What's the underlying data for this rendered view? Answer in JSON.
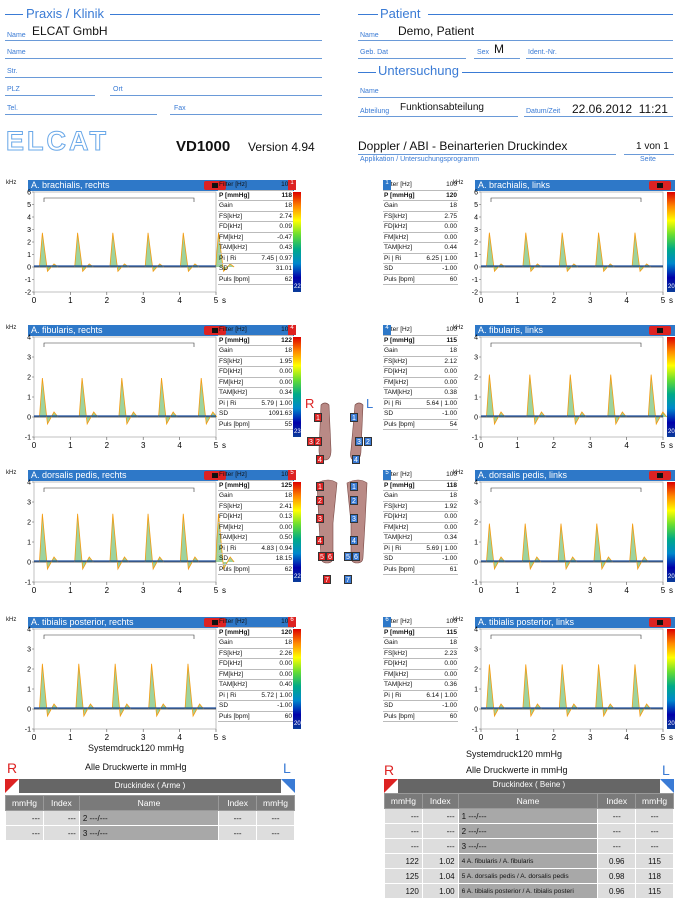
{
  "header": {
    "praxis_title": "Praxis / Klinik",
    "patient_title": "Patient",
    "untersuchung_title": "Untersuchung",
    "fields_left": [
      {
        "label": "Name",
        "value": "ELCAT GmbH"
      },
      {
        "label": "Name",
        "value": ""
      },
      {
        "label": "Str.",
        "value": ""
      },
      {
        "label": "PLZ",
        "value": ""
      },
      {
        "label": "Ort",
        "value": ""
      },
      {
        "label": "Tel.",
        "value": ""
      },
      {
        "label": "Fax",
        "value": ""
      }
    ],
    "patient": {
      "name_label": "Name",
      "name_value": "Demo, Patient",
      "geb_label": "Geb. Dat",
      "geb_value": "",
      "sex_label": "Sex",
      "sex_value": "M",
      "ident_label": "Ident.-Nr.",
      "ident_value": ""
    },
    "untersuchung": {
      "name_label": "Name",
      "name_value": "",
      "abteilung_label": "Abteilung",
      "abteilung_value": "Funktionsabteilung",
      "datum_label": "Datum/Zeit",
      "datum_value": "22.06.2012  11:21"
    }
  },
  "banner": {
    "logo": "ELCAT",
    "model": "VD1000",
    "version": "Version 4.94",
    "program": "Doppler / ABI - Beinarterien Druckindex",
    "program_label": "Applikation / Untersuchungsprogramm",
    "page": "1 von 1",
    "page_label": "Seite"
  },
  "panels": [
    {
      "title": "A. brachialis, rechts",
      "num": "1",
      "side": "R",
      "ymax": 6,
      "yticks": [
        "6",
        "5",
        "4",
        "3",
        "2",
        "1",
        "0",
        "-1",
        "-2"
      ],
      "params": [
        [
          "Filter [Hz]",
          "100"
        ],
        [
          "P [mmHg]",
          "118"
        ],
        [
          "Gain",
          "18"
        ],
        [
          "FS[kHz]",
          "2.74"
        ],
        [
          "FD[kHz]",
          "0.09"
        ],
        [
          "FM[kHz]",
          "-0.47"
        ],
        [
          "TAM[kHz]",
          "0.43"
        ],
        [
          "Pi | Ri",
          "7.45 | 0.97"
        ],
        [
          "SD",
          "31.01"
        ],
        [
          "Puls [bpm]",
          "62"
        ]
      ],
      "scale": "22"
    },
    {
      "title": "A. brachialis, links",
      "num": "1",
      "side": "L",
      "ymax": 6,
      "yticks": [
        "6",
        "5",
        "4",
        "3",
        "2",
        "1",
        "0",
        "-1",
        "-2"
      ],
      "params": [
        [
          "Filter [Hz]",
          "100"
        ],
        [
          "P [mmHg]",
          "120"
        ],
        [
          "Gain",
          "18"
        ],
        [
          "FS[kHz]",
          "2.75"
        ],
        [
          "FD[kHz]",
          "0.00"
        ],
        [
          "FM[kHz]",
          "0.00"
        ],
        [
          "TAM[kHz]",
          "0.44"
        ],
        [
          "Pi | Ri",
          "6.25 | 1.00"
        ],
        [
          "SD",
          "-1.00"
        ],
        [
          "Puls [bpm]",
          "60"
        ]
      ],
      "scale": "20"
    },
    {
      "title": "A. fibularis, rechts",
      "num": "4",
      "side": "R",
      "ymax": 4,
      "yticks": [
        "4",
        "3",
        "2",
        "1",
        "0",
        "-1"
      ],
      "params": [
        [
          "Filter [Hz]",
          "100"
        ],
        [
          "P [mmHg]",
          "122"
        ],
        [
          "Gain",
          "18"
        ],
        [
          "FS[kHz]",
          "1.95"
        ],
        [
          "FD[kHz]",
          "0.00"
        ],
        [
          "FM[kHz]",
          "0.00"
        ],
        [
          "TAM[kHz]",
          "0.34"
        ],
        [
          "Pi | Ri",
          "5.79 | 1.00"
        ],
        [
          "SD",
          "1091.63"
        ],
        [
          "Puls [bpm]",
          "55"
        ]
      ],
      "scale": "23"
    },
    {
      "title": "A. fibularis, links",
      "num": "4",
      "side": "L",
      "ymax": 4,
      "yticks": [
        "4",
        "3",
        "2",
        "1",
        "0",
        "-1"
      ],
      "params": [
        [
          "Filter [Hz]",
          "100"
        ],
        [
          "P [mmHg]",
          "115"
        ],
        [
          "Gain",
          "18"
        ],
        [
          "FS[kHz]",
          "2.12"
        ],
        [
          "FD[kHz]",
          "0.00"
        ],
        [
          "FM[kHz]",
          "0.00"
        ],
        [
          "TAM[kHz]",
          "0.38"
        ],
        [
          "Pi | Ri",
          "5.64 | 1.00"
        ],
        [
          "SD",
          "-1.00"
        ],
        [
          "Puls [bpm]",
          "54"
        ]
      ],
      "scale": "20"
    },
    {
      "title": "A. dorsalis pedis, rechts",
      "num": "5",
      "side": "R",
      "ymax": 4,
      "yticks": [
        "4",
        "3",
        "2",
        "1",
        "0",
        "-1"
      ],
      "params": [
        [
          "Filter [Hz]",
          "100"
        ],
        [
          "P [mmHg]",
          "125"
        ],
        [
          "Gain",
          "18"
        ],
        [
          "FS[kHz]",
          "2.41"
        ],
        [
          "FD[kHz]",
          "0.13"
        ],
        [
          "FM[kHz]",
          "0.00"
        ],
        [
          "TAM[kHz]",
          "0.50"
        ],
        [
          "Pi | Ri",
          "4.83 | 0.94"
        ],
        [
          "SD",
          "18.15"
        ],
        [
          "Puls [bpm]",
          "62"
        ]
      ],
      "scale": "22"
    },
    {
      "title": "A. dorsalis pedis, links",
      "num": "5",
      "side": "L",
      "ymax": 4,
      "yticks": [
        "4",
        "3",
        "2",
        "1",
        "0",
        "-1"
      ],
      "params": [
        [
          "Filter [Hz]",
          "100"
        ],
        [
          "P [mmHg]",
          "118"
        ],
        [
          "Gain",
          "18"
        ],
        [
          "FS[kHz]",
          "1.92"
        ],
        [
          "FD[kHz]",
          "0.00"
        ],
        [
          "FM[kHz]",
          "0.00"
        ],
        [
          "TAM[kHz]",
          "0.34"
        ],
        [
          "Pi | Ri",
          "5.69 | 1.00"
        ],
        [
          "SD",
          "-1.00"
        ],
        [
          "Puls [bpm]",
          "61"
        ]
      ],
      "scale": "20"
    },
    {
      "title": "A. tibialis posterior, rechts",
      "num": "6",
      "side": "R",
      "ymax": 4,
      "yticks": [
        "4",
        "3",
        "2",
        "1",
        "0",
        "-1"
      ],
      "params": [
        [
          "Filter [Hz]",
          "100"
        ],
        [
          "P [mmHg]",
          "120"
        ],
        [
          "Gain",
          "18"
        ],
        [
          "FS[kHz]",
          "2.26"
        ],
        [
          "FD[kHz]",
          "0.00"
        ],
        [
          "FM[kHz]",
          "0.00"
        ],
        [
          "TAM[kHz]",
          "0.40"
        ],
        [
          "Pi | Ri",
          "5.72 | 1.00"
        ],
        [
          "SD",
          "-1.00"
        ],
        [
          "Puls [bpm]",
          "60"
        ]
      ],
      "scale": "20"
    },
    {
      "title": "A. tibialis posterior, links",
      "num": "6",
      "side": "L",
      "ymax": 4,
      "yticks": [
        "4",
        "3",
        "2",
        "1",
        "0",
        "-1"
      ],
      "params": [
        [
          "Filter [Hz]",
          "100"
        ],
        [
          "P [mmHg]",
          "115"
        ],
        [
          "Gain",
          "18"
        ],
        [
          "FS[kHz]",
          "2.23"
        ],
        [
          "FD[kHz]",
          "0.00"
        ],
        [
          "FM[kHz]",
          "0.00"
        ],
        [
          "TAM[kHz]",
          "0.36"
        ],
        [
          "Pi | Ri",
          "6.14 | 1.00"
        ],
        [
          "SD",
          "-1.00"
        ],
        [
          "Puls [bpm]",
          "60"
        ]
      ],
      "scale": "20"
    }
  ],
  "axis": {
    "ylabel": "kHz",
    "xticks": [
      "0",
      "1",
      "2",
      "3",
      "4",
      "5"
    ],
    "xunit": "s"
  },
  "body_map": {
    "R": "R",
    "L": "L",
    "right_nums": [
      "1",
      "2",
      "3",
      "4",
      "5",
      "6",
      "7"
    ],
    "left_nums": [
      "1",
      "2",
      "3",
      "4",
      "5",
      "6",
      "7"
    ]
  },
  "systemdruck_left": "Systemdruck120 mmHg",
  "systemdruck_right": "Systemdruck120 mmHg",
  "alle_left": "Alle Druckwerte in mmHg",
  "alle_right": "Alle Druckwerte in mmHg",
  "arme": {
    "R": "R",
    "L": "L",
    "title": "Druckindex ( Arme )",
    "headers": [
      "mmHg",
      "Index",
      "Name",
      "Index",
      "mmHg"
    ],
    "rows": [
      [
        "---",
        "---",
        "2 ---/---",
        "---",
        "---"
      ],
      [
        "---",
        "---",
        "3 ---/---",
        "---",
        "---"
      ]
    ]
  },
  "beine": {
    "R": "R",
    "L": "L",
    "title": "Druckindex ( Beine )",
    "headers": [
      "mmHg",
      "Index",
      "Name",
      "Index",
      "mmHg"
    ],
    "rows": [
      [
        "---",
        "---",
        "1 ---/---",
        "---",
        "---"
      ],
      [
        "---",
        "---",
        "2 ---/---",
        "---",
        "---"
      ],
      [
        "---",
        "---",
        "3 ---/---",
        "---",
        "---"
      ],
      [
        "122",
        "1.02",
        "4  A. fibularis / A. fibularis",
        "0.96",
        "115"
      ],
      [
        "125",
        "1.04",
        "5  A. dorsalis pedis / A. dorsalis pedis",
        "0.98",
        "118"
      ],
      [
        "120",
        "1.00",
        "6  A. tibialis posterior / A. tibialis posteri",
        "0.96",
        "115"
      ]
    ]
  }
}
